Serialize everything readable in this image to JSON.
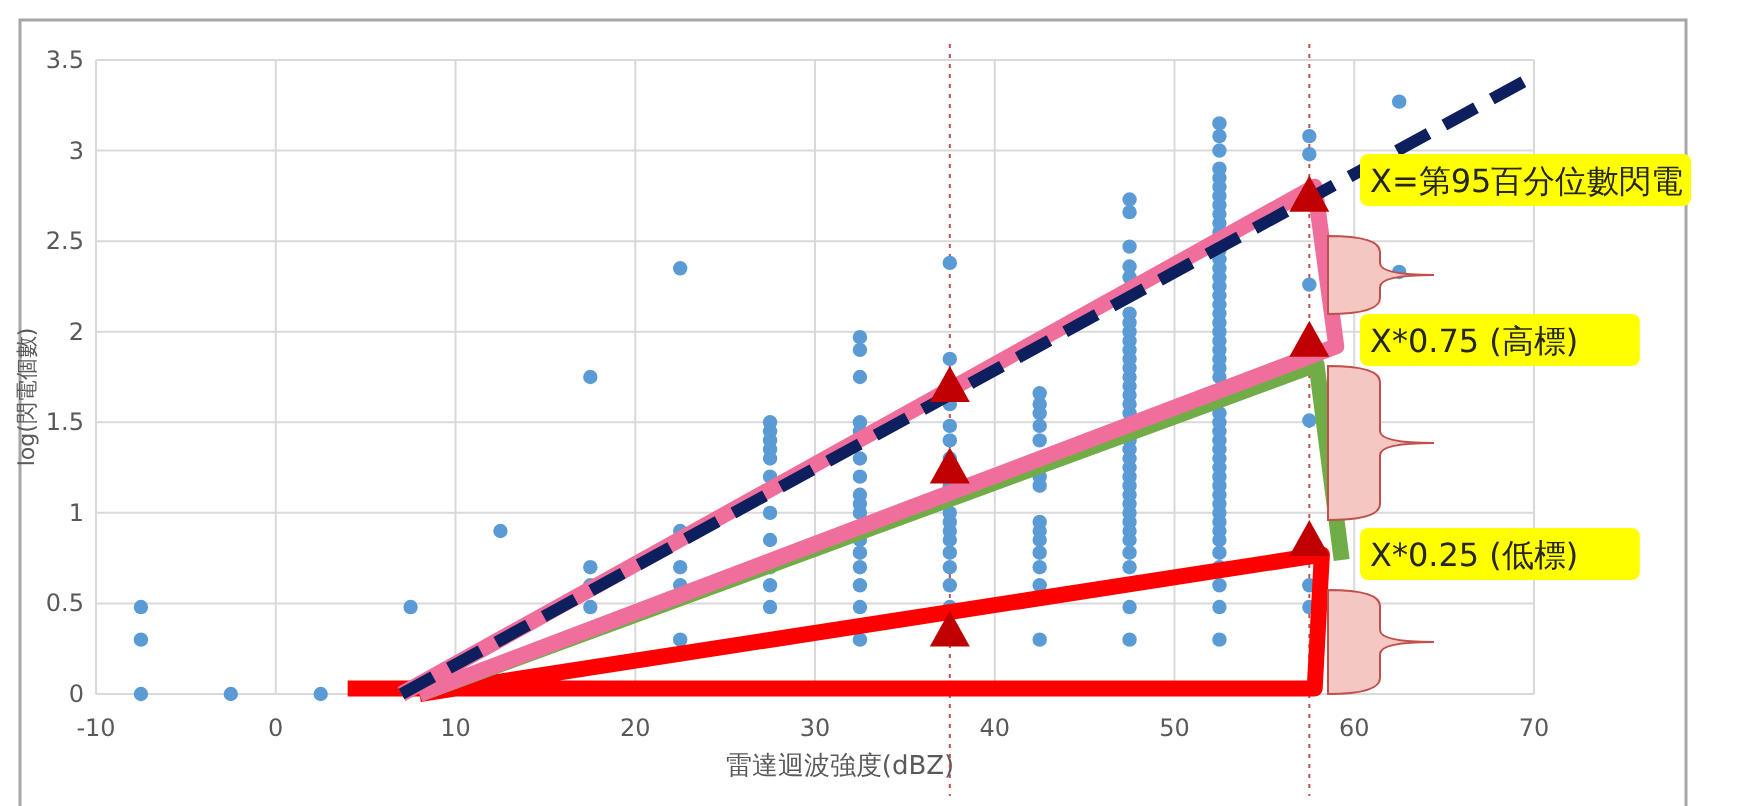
{
  "chart_data": {
    "type": "scatter",
    "xlabel": "雷達迴波強度(dBZ)",
    "ylabel": "log(閃電個數)",
    "xlim": [
      -10,
      70
    ],
    "xticks": [
      -10,
      0,
      10,
      20,
      30,
      40,
      50,
      60,
      70
    ],
    "ylim": [
      0,
      3.5
    ],
    "yticks": [
      0,
      0.5,
      1,
      1.5,
      2,
      2.5,
      3,
      3.5
    ],
    "grid": true,
    "series": [
      {
        "color": "#5b9bd5",
        "marker": "circle",
        "x": [
          -7.5,
          -7.5,
          -7.5,
          -2.5,
          2.5,
          7.5,
          12.5,
          17.5,
          17.5,
          17.5,
          17.5,
          22.5,
          22.5,
          22.5,
          22.5,
          22.5,
          27.5,
          27.5,
          27.5,
          27.5,
          27.5,
          27.5,
          27.5,
          27.5,
          27.5,
          27.5,
          27.5,
          32.5,
          32.5,
          32.5,
          32.5,
          32.5,
          32.5,
          32.5,
          32.5,
          32.5,
          32.5,
          32.5,
          32.5,
          32.5,
          32.5,
          32.5,
          32.5,
          37.5,
          37.5,
          37.5,
          37.5,
          37.5,
          37.5,
          37.5,
          37.5,
          37.5,
          37.5,
          37.5,
          37.5,
          37.5,
          37.5,
          37.5,
          42.5,
          42.5,
          42.5,
          42.5,
          42.5,
          42.5,
          42.5,
          42.5,
          42.5,
          42.5,
          42.5,
          42.5,
          42.5,
          42.5,
          47.5,
          47.5,
          47.5,
          47.5,
          47.5,
          47.5,
          47.5,
          47.5,
          47.5,
          47.5,
          47.5,
          47.5,
          47.5,
          47.5,
          47.5,
          47.5,
          47.5,
          47.5,
          47.5,
          47.5,
          47.5,
          47.5,
          47.5,
          47.5,
          47.5,
          47.5,
          47.5,
          47.5,
          47.5,
          47.5,
          47.5,
          47.5,
          47.5,
          52.5,
          52.5,
          52.5,
          52.5,
          52.5,
          52.5,
          52.5,
          52.5,
          52.5,
          52.5,
          52.5,
          52.5,
          52.5,
          52.5,
          52.5,
          52.5,
          52.5,
          52.5,
          52.5,
          52.5,
          52.5,
          52.5,
          52.5,
          52.5,
          52.5,
          52.5,
          52.5,
          52.5,
          52.5,
          52.5,
          52.5,
          52.5,
          52.5,
          52.5,
          52.5,
          52.5,
          52.5,
          52.5,
          52.5,
          52.5,
          52.5,
          52.5,
          52.5,
          52.5,
          52.5,
          52.5,
          57.5,
          57.5,
          57.5,
          57.5,
          57.5,
          57.5,
          62.5,
          62.5
        ],
        "values": [
          0,
          0.3,
          0.48,
          0,
          0,
          0.48,
          0.9,
          0.48,
          0.6,
          0.7,
          1.75,
          0.3,
          0.6,
          0.7,
          0.9,
          2.35,
          0.48,
          0.6,
          0.7,
          0.85,
          1.0,
          1.2,
          1.3,
          1.35,
          1.4,
          1.45,
          1.5,
          0.3,
          0.48,
          0.6,
          0.7,
          0.78,
          0.85,
          1.0,
          1.05,
          1.1,
          1.2,
          1.3,
          1.45,
          1.5,
          1.75,
          1.9,
          1.97,
          0.48,
          0.6,
          0.7,
          0.78,
          0.85,
          0.9,
          0.95,
          1.0,
          1.15,
          1.3,
          1.4,
          1.48,
          1.6,
          1.85,
          2.38,
          0.3,
          0.6,
          0.7,
          0.78,
          0.85,
          0.9,
          0.95,
          1.15,
          1.2,
          1.4,
          1.48,
          1.55,
          1.6,
          1.66,
          0.3,
          0.48,
          0.7,
          0.78,
          0.85,
          0.9,
          0.95,
          1.0,
          1.05,
          1.1,
          1.15,
          1.2,
          1.25,
          1.3,
          1.35,
          1.4,
          1.55,
          1.6,
          1.65,
          1.7,
          1.75,
          1.8,
          1.85,
          1.9,
          1.95,
          2.0,
          2.05,
          2.1,
          2.3,
          2.36,
          2.47,
          2.66,
          2.73,
          0.3,
          0.48,
          0.6,
          0.7,
          0.78,
          0.85,
          0.9,
          0.95,
          1.0,
          1.05,
          1.1,
          1.15,
          1.2,
          1.25,
          1.3,
          1.35,
          1.4,
          1.45,
          1.5,
          1.55,
          1.75,
          1.8,
          1.85,
          1.9,
          1.95,
          2.0,
          2.05,
          2.1,
          2.15,
          2.2,
          2.25,
          2.3,
          2.35,
          2.4,
          2.45,
          2.55,
          2.6,
          2.65,
          2.7,
          2.75,
          2.8,
          2.85,
          2.9,
          3.0,
          3.08,
          3.15,
          0.48,
          0.6,
          1.51,
          2.26,
          2.98,
          3.08,
          2.33,
          3.27
        ]
      },
      {
        "type": "line",
        "color": "#ff0000",
        "line_style": "solid",
        "marker": "none",
        "x": [
          8,
          58.2,
          57.8,
          4
        ],
        "values": [
          0,
          0.77,
          0.03,
          0.03
        ]
      },
      {
        "type": "line",
        "color": "#70ad47",
        "line_style": "solid",
        "marker": "none",
        "x": [
          8,
          57.9,
          59.3
        ],
        "values": [
          0,
          1.82,
          0.74
        ]
      },
      {
        "type": "line",
        "color": "#f06e9c",
        "line_style": "solid",
        "marker": "none",
        "x": [
          7,
          57.8,
          59,
          8
        ],
        "values": [
          0,
          2.8,
          1.92,
          0
        ]
      },
      {
        "type": "line",
        "color": "#0d1f5c",
        "line_style": "dashed",
        "marker": "none",
        "x": [
          7,
          69.6
        ],
        "values": [
          0,
          3.39
        ]
      },
      {
        "type": "scatter",
        "color": "#c00000",
        "marker": "triangle",
        "x": [
          37.5,
          37.5,
          37.5,
          57.5,
          57.5,
          57.5
        ],
        "values": [
          1.7,
          1.25,
          0.35,
          2.75,
          1.95,
          0.85
        ]
      }
    ],
    "ref_lines": [
      {
        "axis": "x",
        "value": 37.5,
        "color": "#c0504d",
        "line_style": "dotted"
      },
      {
        "axis": "x",
        "value": 57.5,
        "color": "#c0504d",
        "line_style": "dotted"
      }
    ],
    "annotations": [
      "X=第95百分位數閃電",
      "X*0.75 (高標)",
      "X*0.25 (低標)"
    ]
  }
}
